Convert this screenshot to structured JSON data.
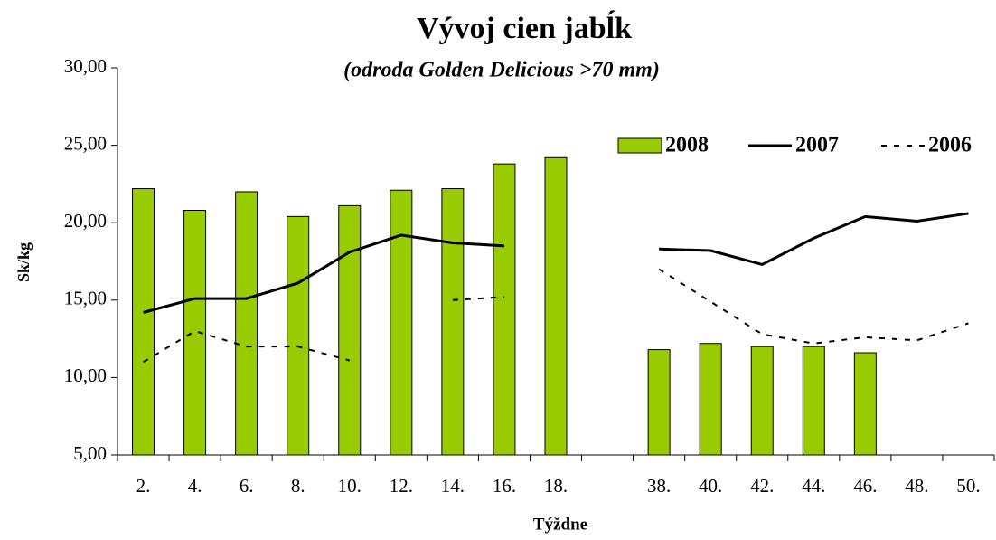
{
  "chart_data": {
    "type": "bar",
    "title": "Vývoj cien jabĺk",
    "subtitle": "(odroda Golden Delicious >70 mm)",
    "x_label": "Týždne",
    "y_label": "Sk/kg",
    "categories": [
      "2.",
      "4.",
      "6.",
      "8.",
      "10.",
      "12.",
      "14.",
      "16.",
      "18.",
      null,
      "38.",
      "40.",
      "42.",
      "44.",
      "46.",
      "48.",
      "50."
    ],
    "series": [
      {
        "name": "2008",
        "type": "bar",
        "color": "#99cc00",
        "values": [
          22.2,
          20.8,
          22.0,
          20.4,
          21.1,
          22.1,
          22.2,
          23.8,
          24.2,
          null,
          11.8,
          12.2,
          12.0,
          12.0,
          11.6,
          null,
          null
        ]
      },
      {
        "name": "2007",
        "type": "line",
        "color": "#000000",
        "linestyle": "solid",
        "values": [
          14.2,
          15.1,
          15.1,
          16.1,
          18.1,
          19.2,
          18.7,
          18.5,
          null,
          null,
          18.3,
          18.2,
          17.3,
          19.0,
          20.4,
          20.1,
          20.6
        ]
      },
      {
        "name": "2006",
        "type": "line",
        "color": "#000000",
        "linestyle": "dashed",
        "values": [
          11.0,
          13.0,
          12.0,
          12.0,
          11.1,
          null,
          15.0,
          15.2,
          null,
          null,
          17.0,
          14.9,
          12.8,
          12.2,
          12.6,
          12.4,
          13.5
        ]
      }
    ],
    "ylim": [
      5,
      30
    ],
    "yticks": [
      {
        "value": 5,
        "label": "5,00"
      },
      {
        "value": 10,
        "label": "10,00"
      },
      {
        "value": 15,
        "label": "15,00"
      },
      {
        "value": 20,
        "label": "20,00"
      },
      {
        "value": 25,
        "label": "25,00"
      },
      {
        "value": 30,
        "label": "30,00"
      }
    ],
    "grid": false,
    "legend": "top-right"
  }
}
